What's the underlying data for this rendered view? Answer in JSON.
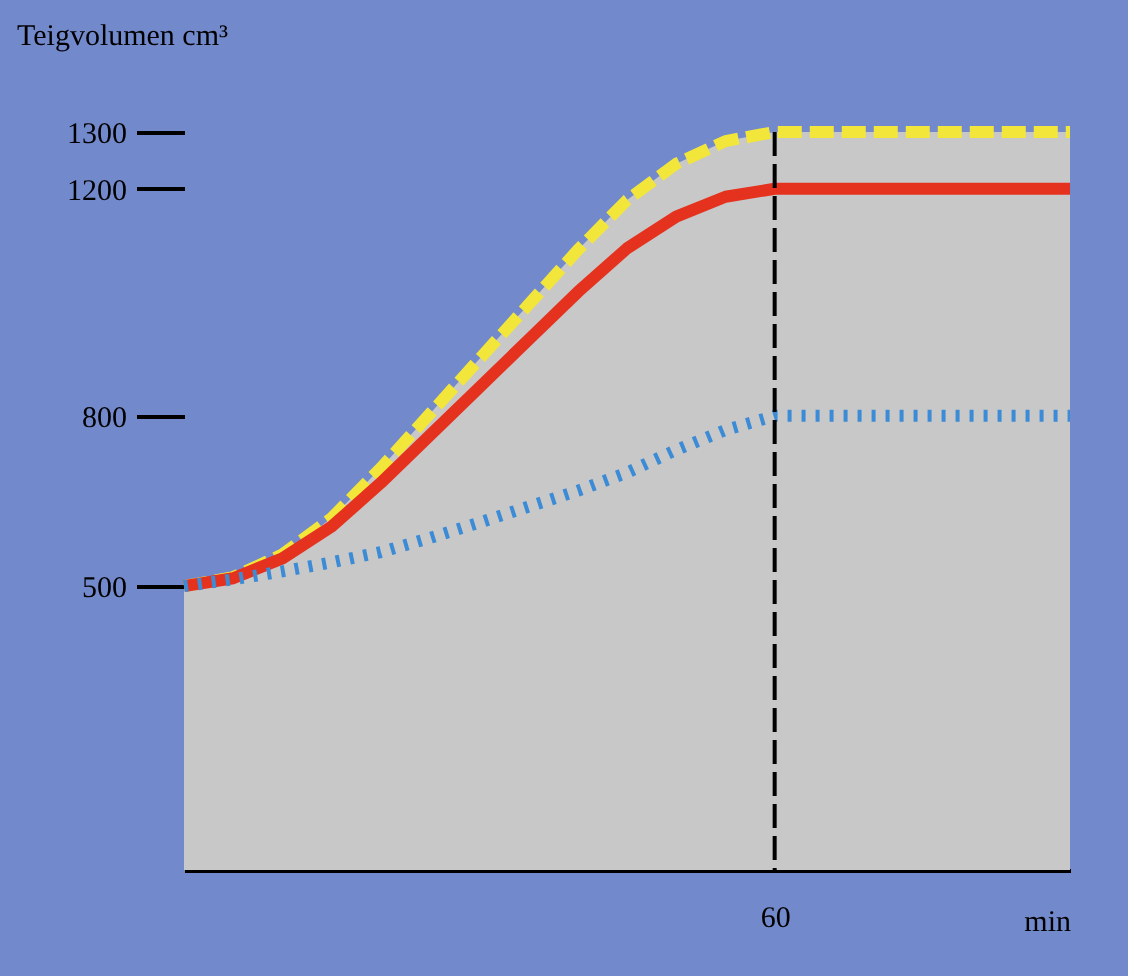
{
  "chart_data": {
    "type": "line",
    "ylabel": "Teigvolumen cm³",
    "xlabel": "min",
    "categories": [
      null,
      null,
      null,
      null,
      null,
      null,
      null,
      null,
      null,
      null,
      null,
      null,
      "60",
      null,
      null,
      null,
      null,
      null,
      null
    ],
    "ylim": [
      0,
      1300
    ],
    "yticks": [
      500,
      800,
      1200,
      1300
    ],
    "grid": false,
    "marker": "none",
    "ref_lines": [
      {
        "axis": "x",
        "value": "60",
        "color": "#000000",
        "line_style": "dashed"
      }
    ],
    "series": [
      {
        "type": "area",
        "color": "#f2e63a",
        "line_style": "dashed",
        "values": [
          500,
          516,
          556,
          620,
          708,
          804,
          900,
          996,
          1092,
          1180,
          1244,
          1284,
          1300,
          1300,
          1300,
          1300,
          1300,
          1300,
          1300
        ]
      },
      {
        "color": "#e5321e",
        "line_style": "solid",
        "values": [
          500,
          514,
          549,
          605,
          682,
          766,
          850,
          934,
          1018,
          1095,
          1151,
          1186,
          1200,
          1200,
          1200,
          1200,
          1200,
          1200,
          1200
        ]
      },
      {
        "color": "#3b8bd6",
        "line_style": "dotted",
        "values": [
          500,
          512,
          526,
          542,
          560,
          585,
          612,
          640,
          668,
          700,
          740,
          775,
          800,
          800,
          800,
          800,
          800,
          800,
          800
        ]
      }
    ]
  }
}
